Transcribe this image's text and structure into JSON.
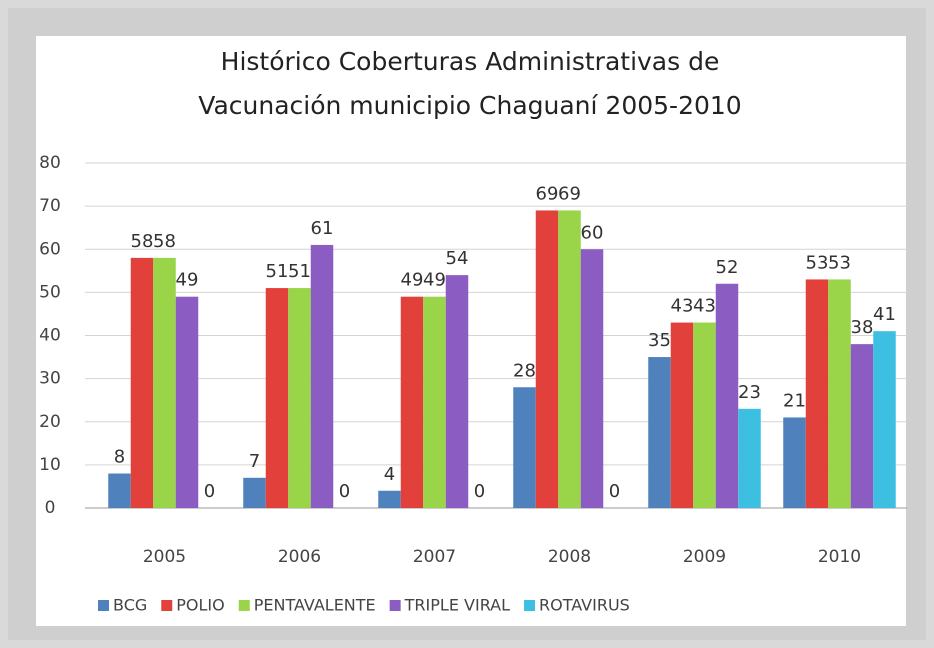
{
  "chart_data": {
    "type": "bar",
    "title": [
      "Histórico Coberturas Administrativas de",
      "Vacunación municipio Chaguaní 2005-2010"
    ],
    "categories": [
      "2005",
      "2006",
      "2007",
      "2008",
      "2009",
      "2010"
    ],
    "series": [
      {
        "name": "BCG",
        "color": "#4f81bd",
        "values": [
          8,
          7,
          4,
          28,
          35,
          21
        ]
      },
      {
        "name": "POLIO",
        "color": "#e2403a",
        "values": [
          58,
          51,
          49,
          69,
          43,
          53
        ]
      },
      {
        "name": "PENTAVALENTE",
        "color": "#9ad448",
        "values": [
          58,
          51,
          49,
          69,
          43,
          53
        ]
      },
      {
        "name": "TRIPLE VIRAL",
        "color": "#8b5cc2",
        "values": [
          49,
          61,
          54,
          60,
          52,
          38
        ]
      },
      {
        "name": "ROTAVIRUS",
        "color": "#3dbfe2",
        "values": [
          0,
          0,
          0,
          0,
          23,
          41
        ]
      }
    ],
    "ylim": [
      0,
      80
    ],
    "yticks": [
      0,
      10,
      20,
      30,
      40,
      50,
      60,
      70,
      80
    ],
    "grid": true,
    "legend": "bottom"
  }
}
